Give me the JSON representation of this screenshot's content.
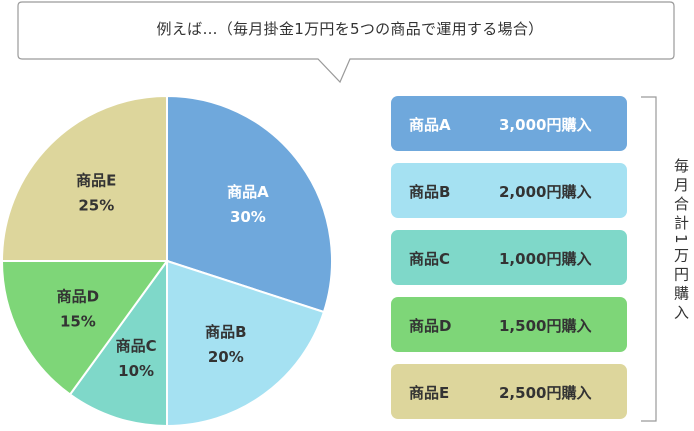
{
  "callout": {
    "text": "例えば…（毎月掛金1万円を5つの商品で運用する場合）"
  },
  "chart_data": {
    "type": "pie",
    "slices": [
      {
        "name": "商品A",
        "value": 30,
        "value_label": "30%",
        "color": "#6fa8dc"
      },
      {
        "name": "商品B",
        "value": 20,
        "value_label": "20%",
        "color": "#a5e1f2"
      },
      {
        "name": "商品C",
        "value": 10,
        "value_label": "10%",
        "color": "#7fd8c9"
      },
      {
        "name": "商品D",
        "value": 15,
        "value_label": "15%",
        "color": "#7ed678"
      },
      {
        "name": "商品E",
        "value": 25,
        "value_label": "25%",
        "color": "#ddd69c"
      }
    ]
  },
  "legend": {
    "items": [
      {
        "name": "商品A",
        "amount": "3,000円購入",
        "color": "#6fa8dc"
      },
      {
        "name": "商品B",
        "amount": "2,000円購入",
        "color": "#a5e1f2"
      },
      {
        "name": "商品C",
        "amount": "1,000円購入",
        "color": "#7fd8c9"
      },
      {
        "name": "商品D",
        "amount": "1,500円購入",
        "color": "#7ed678"
      },
      {
        "name": "商品E",
        "amount": "2,500円購入",
        "color": "#ddd69c"
      }
    ],
    "total_label": "毎月合計1万円購入"
  }
}
